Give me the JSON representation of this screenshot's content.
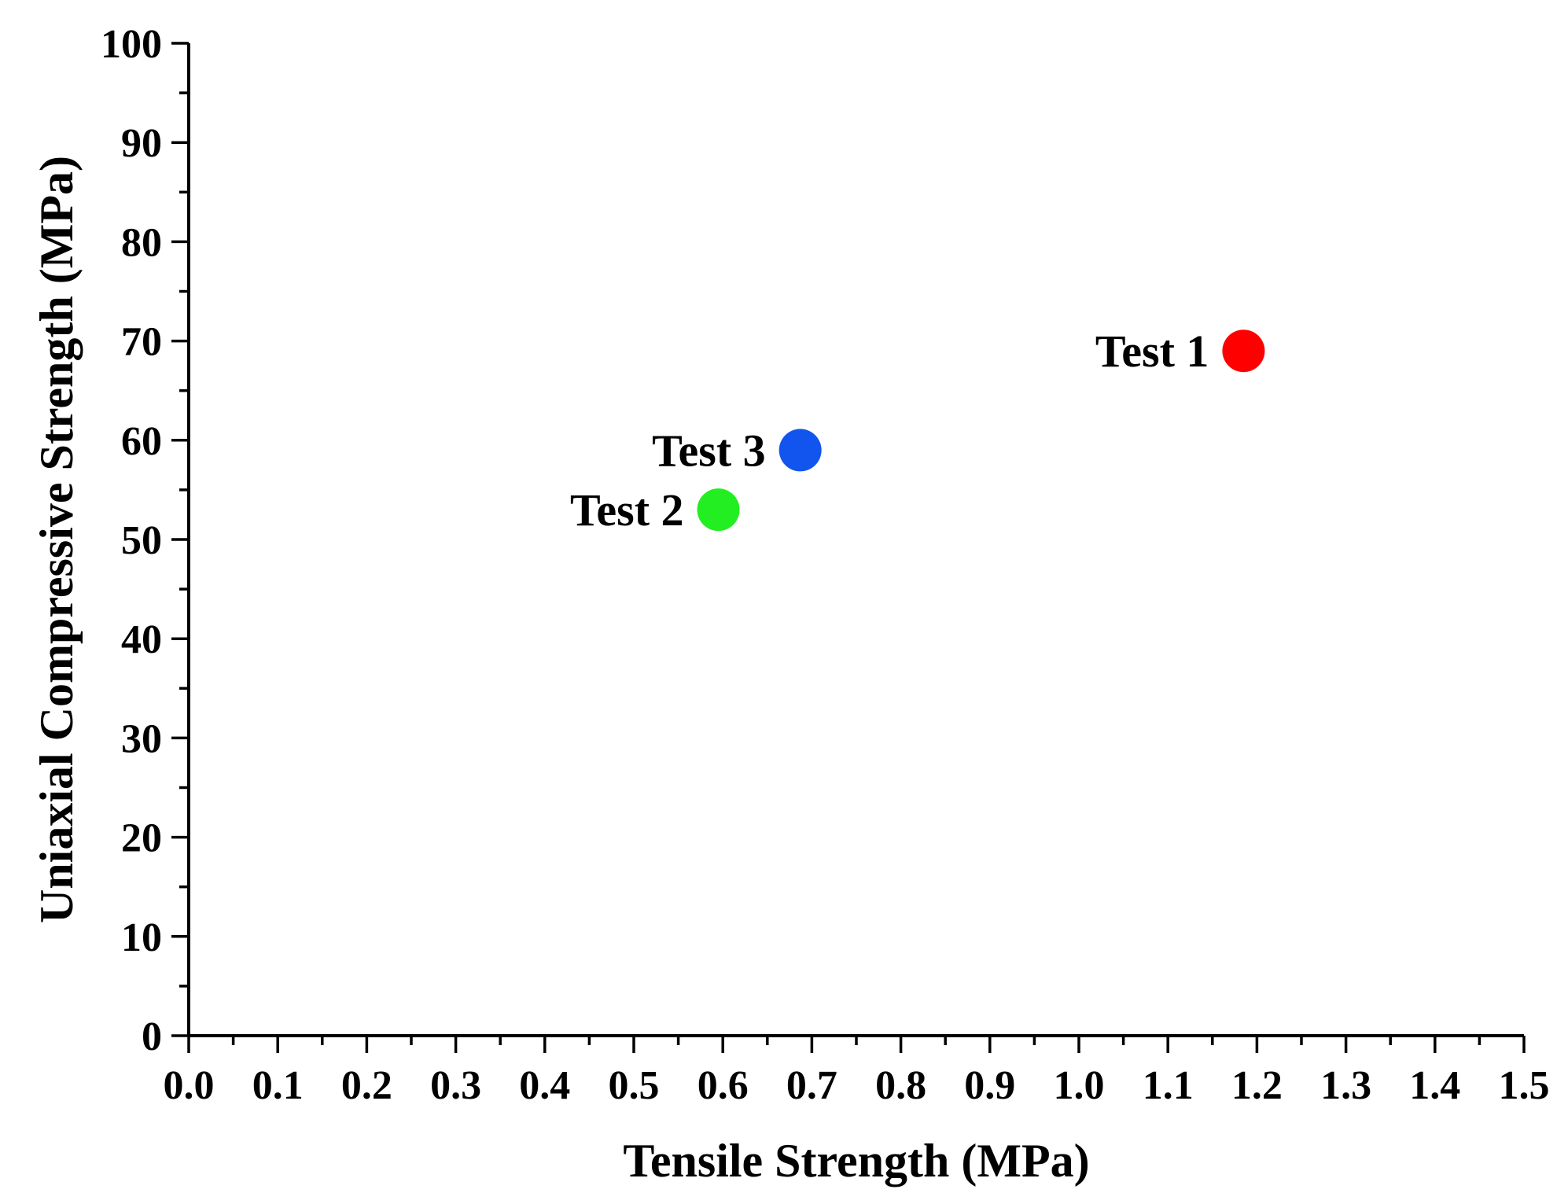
{
  "chart_data": {
    "type": "scatter",
    "title": "",
    "xlabel": "Tensile Strength (MPa)",
    "ylabel": "Uniaxial Compressive Strength (MPa)",
    "xlim": [
      0.0,
      1.5
    ],
    "ylim": [
      0,
      100
    ],
    "x_ticks": [
      "0.0",
      "0.1",
      "0.2",
      "0.3",
      "0.4",
      "0.5",
      "0.6",
      "0.7",
      "0.8",
      "0.9",
      "1.0",
      "1.1",
      "1.2",
      "1.3",
      "1.4",
      "1.5"
    ],
    "y_ticks": [
      "0",
      "10",
      "20",
      "30",
      "40",
      "50",
      "60",
      "70",
      "80",
      "90",
      "100"
    ],
    "grid": false,
    "points": [
      {
        "label": "Test 1",
        "x": 1.185,
        "y": 69,
        "color": "#ff0000"
      },
      {
        "label": "Test 2",
        "x": 0.595,
        "y": 53,
        "color": "#22ee22"
      },
      {
        "label": "Test 3",
        "x": 0.687,
        "y": 59,
        "color": "#1155ee"
      }
    ]
  }
}
